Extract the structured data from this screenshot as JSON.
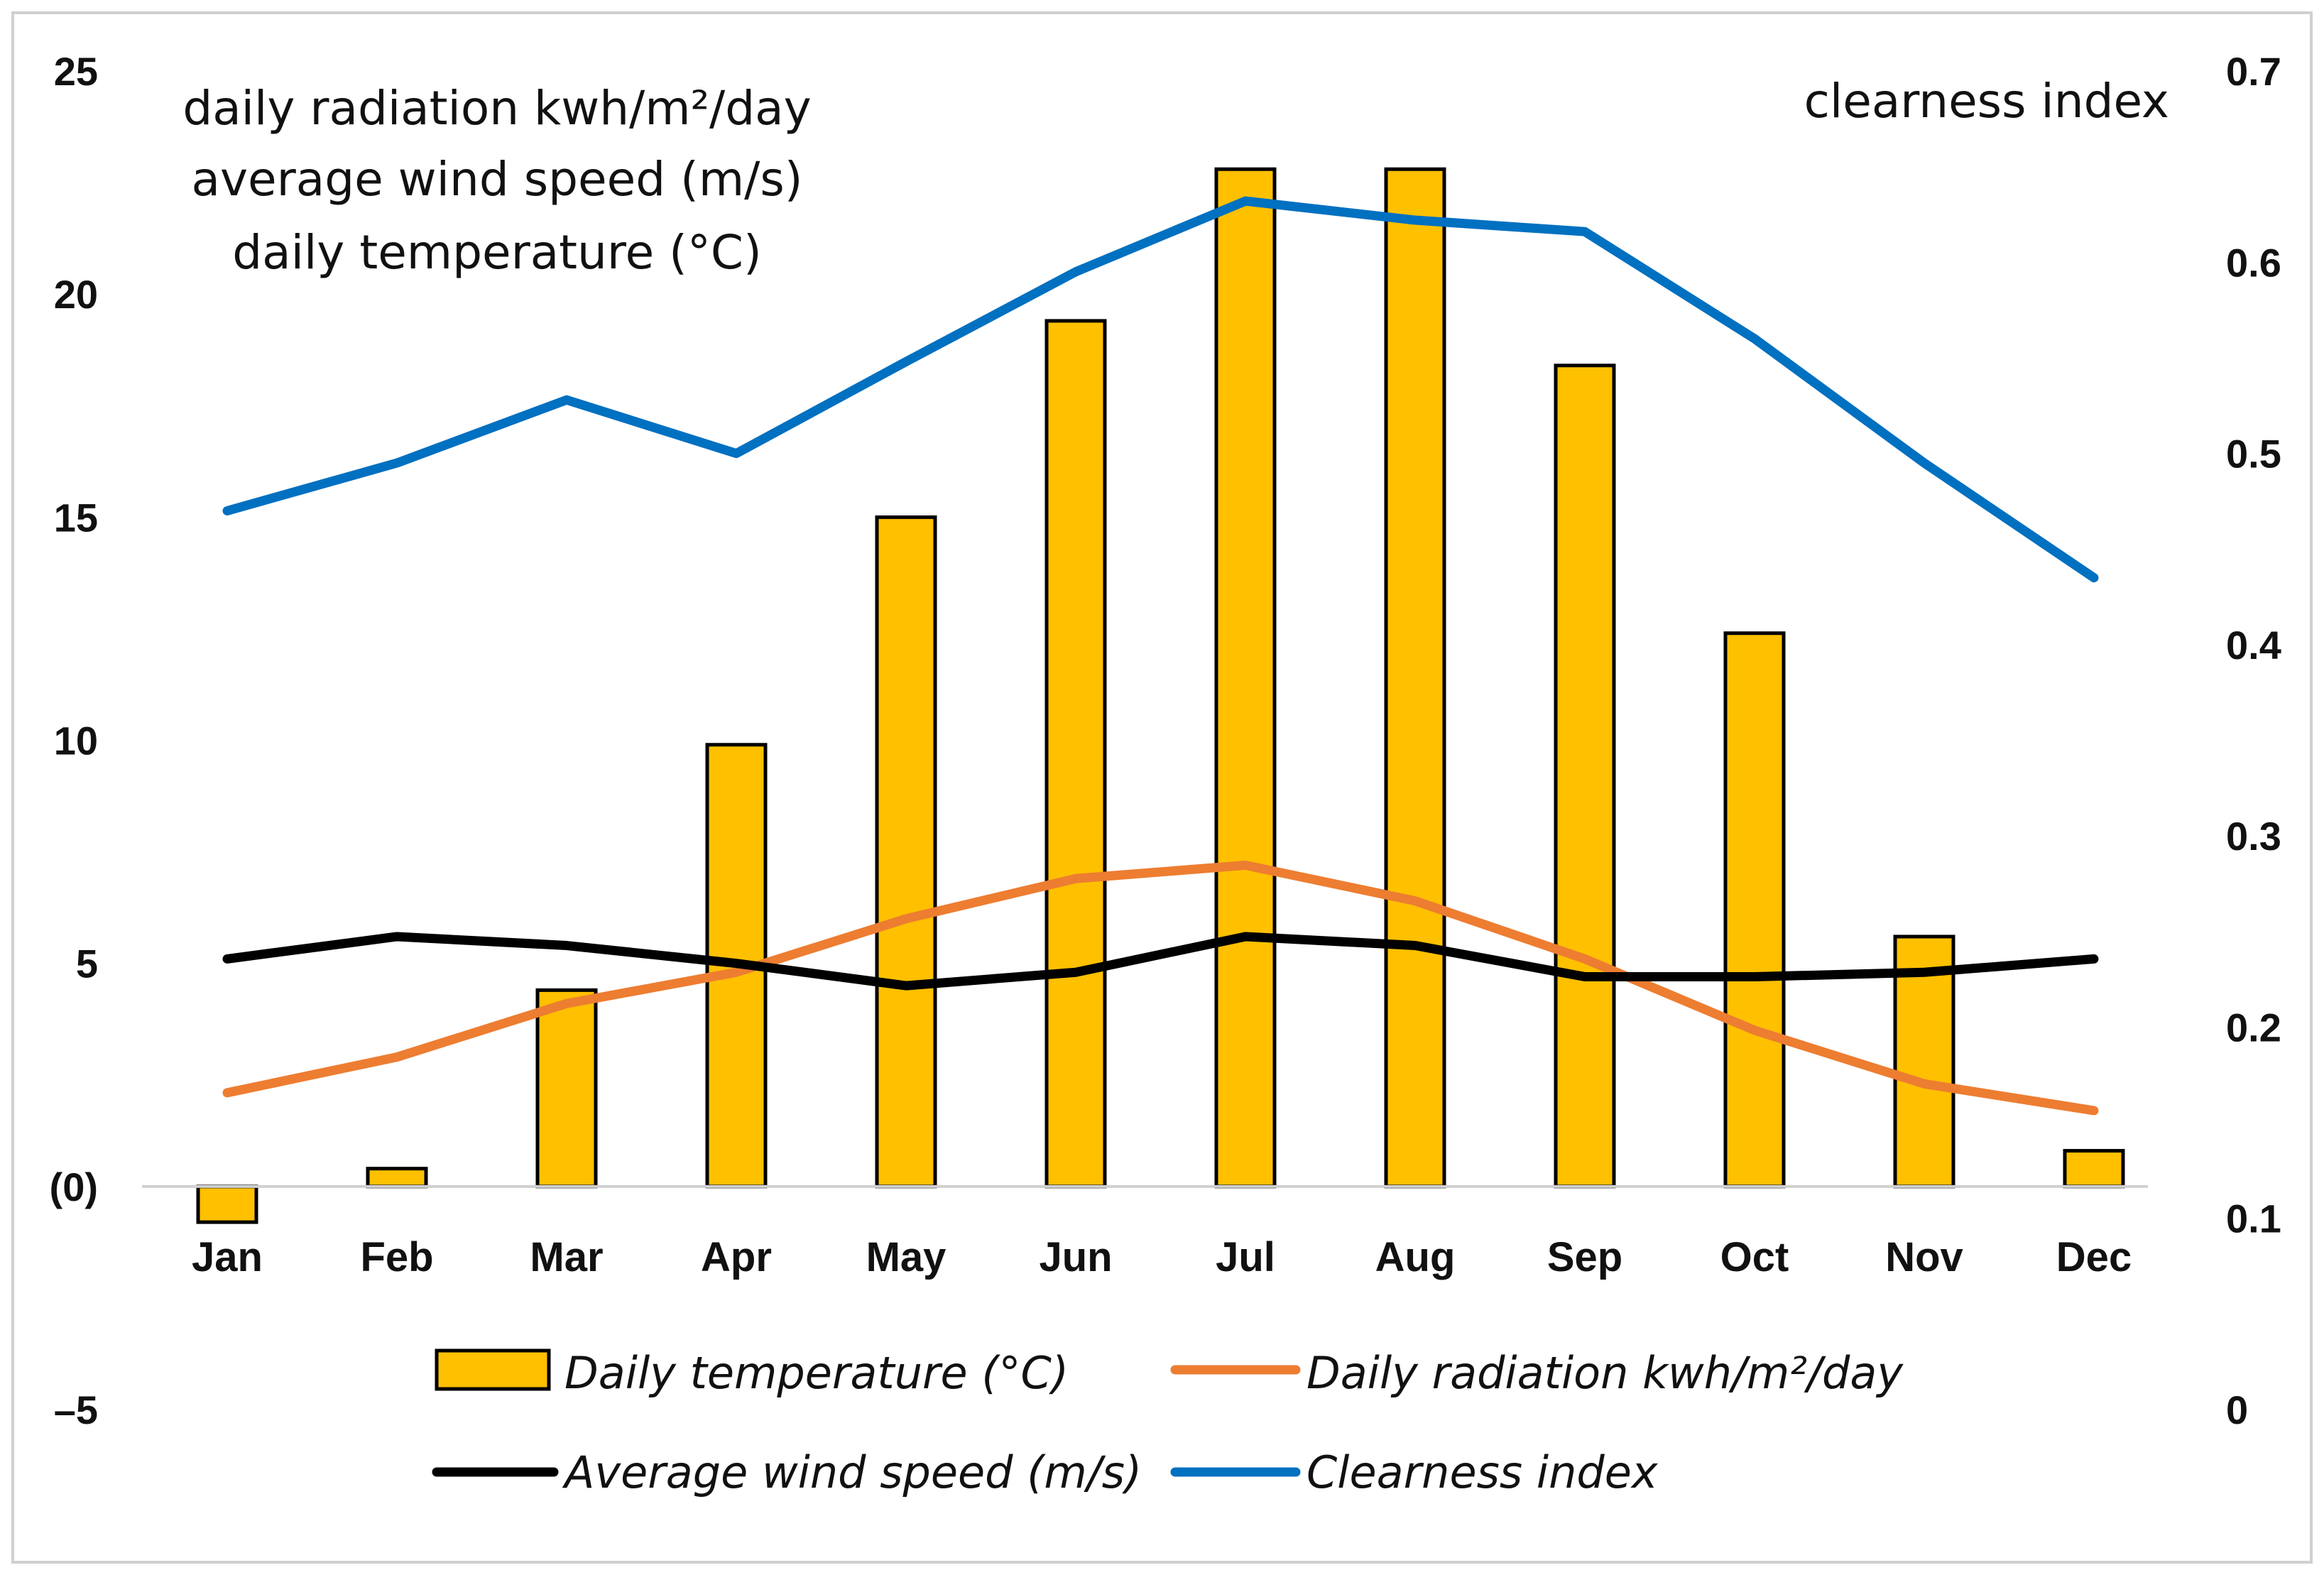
{
  "chart_data": {
    "type": "bar",
    "categories": [
      "Jan",
      "Feb",
      "Mar",
      "Apr",
      "May",
      "Jun",
      "Jul",
      "Aug",
      "Sep",
      "Oct",
      "Nov",
      "Dec"
    ],
    "series": [
      {
        "name": "Daily temperature (°C)",
        "kind": "bar",
        "axis": "left",
        "color": "#FFC000",
        "values": [
          -0.8,
          0.4,
          4.4,
          9.9,
          15.0,
          19.4,
          22.8,
          22.8,
          18.4,
          12.4,
          5.6,
          0.8
        ]
      },
      {
        "name": "Daily radiation kwh/m²/day",
        "kind": "line",
        "axis": "left",
        "color": "#ED7D31",
        "values": [
          2.1,
          2.9,
          4.1,
          4.8,
          6.0,
          6.9,
          7.2,
          6.4,
          5.1,
          3.5,
          2.3,
          1.7
        ]
      },
      {
        "name": "Average wind speed (m/s)",
        "kind": "line",
        "axis": "left",
        "color": "#000000",
        "values": [
          5.1,
          5.6,
          5.4,
          5.0,
          4.5,
          4.8,
          5.6,
          5.4,
          4.7,
          4.7,
          4.8,
          5.1
        ]
      },
      {
        "name": "Clearness index",
        "kind": "line",
        "axis": "right",
        "color": "#0070C0",
        "values": [
          0.47,
          0.495,
          0.528,
          0.5,
          0.548,
          0.595,
          0.632,
          0.622,
          0.616,
          0.56,
          0.495,
          0.435
        ]
      }
    ],
    "left_axis": {
      "title_lines": [
        "daily radiation kwh/m²/day",
        "average wind speed (m/s)",
        "daily temperature (°C)"
      ],
      "ylim": [
        -5,
        25
      ],
      "ticks": [
        25,
        20,
        15,
        10,
        5,
        0,
        -5
      ],
      "tick_labels": [
        "25",
        "20",
        "15",
        "10",
        "5",
        "(0)",
        "–5"
      ]
    },
    "right_axis": {
      "title": "clearness index",
      "ylim": [
        0,
        0.7
      ],
      "ticks": [
        0.7,
        0.6,
        0.5,
        0.4,
        0.3,
        0.2,
        0.1,
        0
      ],
      "tick_labels": [
        "0.7",
        "0.6",
        "0.5",
        "0.4",
        "0.3",
        "0.2",
        "0.1",
        "0"
      ]
    },
    "legend": {
      "position": "bottom",
      "entries": [
        {
          "label": "Daily temperature (°C)",
          "marker": "bar",
          "color": "#FFC000"
        },
        {
          "label": "Daily radiation kwh/m²/day",
          "marker": "line",
          "color": "#ED7D31"
        },
        {
          "label": "Average wind speed (m/s)",
          "marker": "line",
          "color": "#000000"
        },
        {
          "label": "Clearness index",
          "marker": "line",
          "color": "#0070C0"
        }
      ]
    },
    "grid": false
  }
}
